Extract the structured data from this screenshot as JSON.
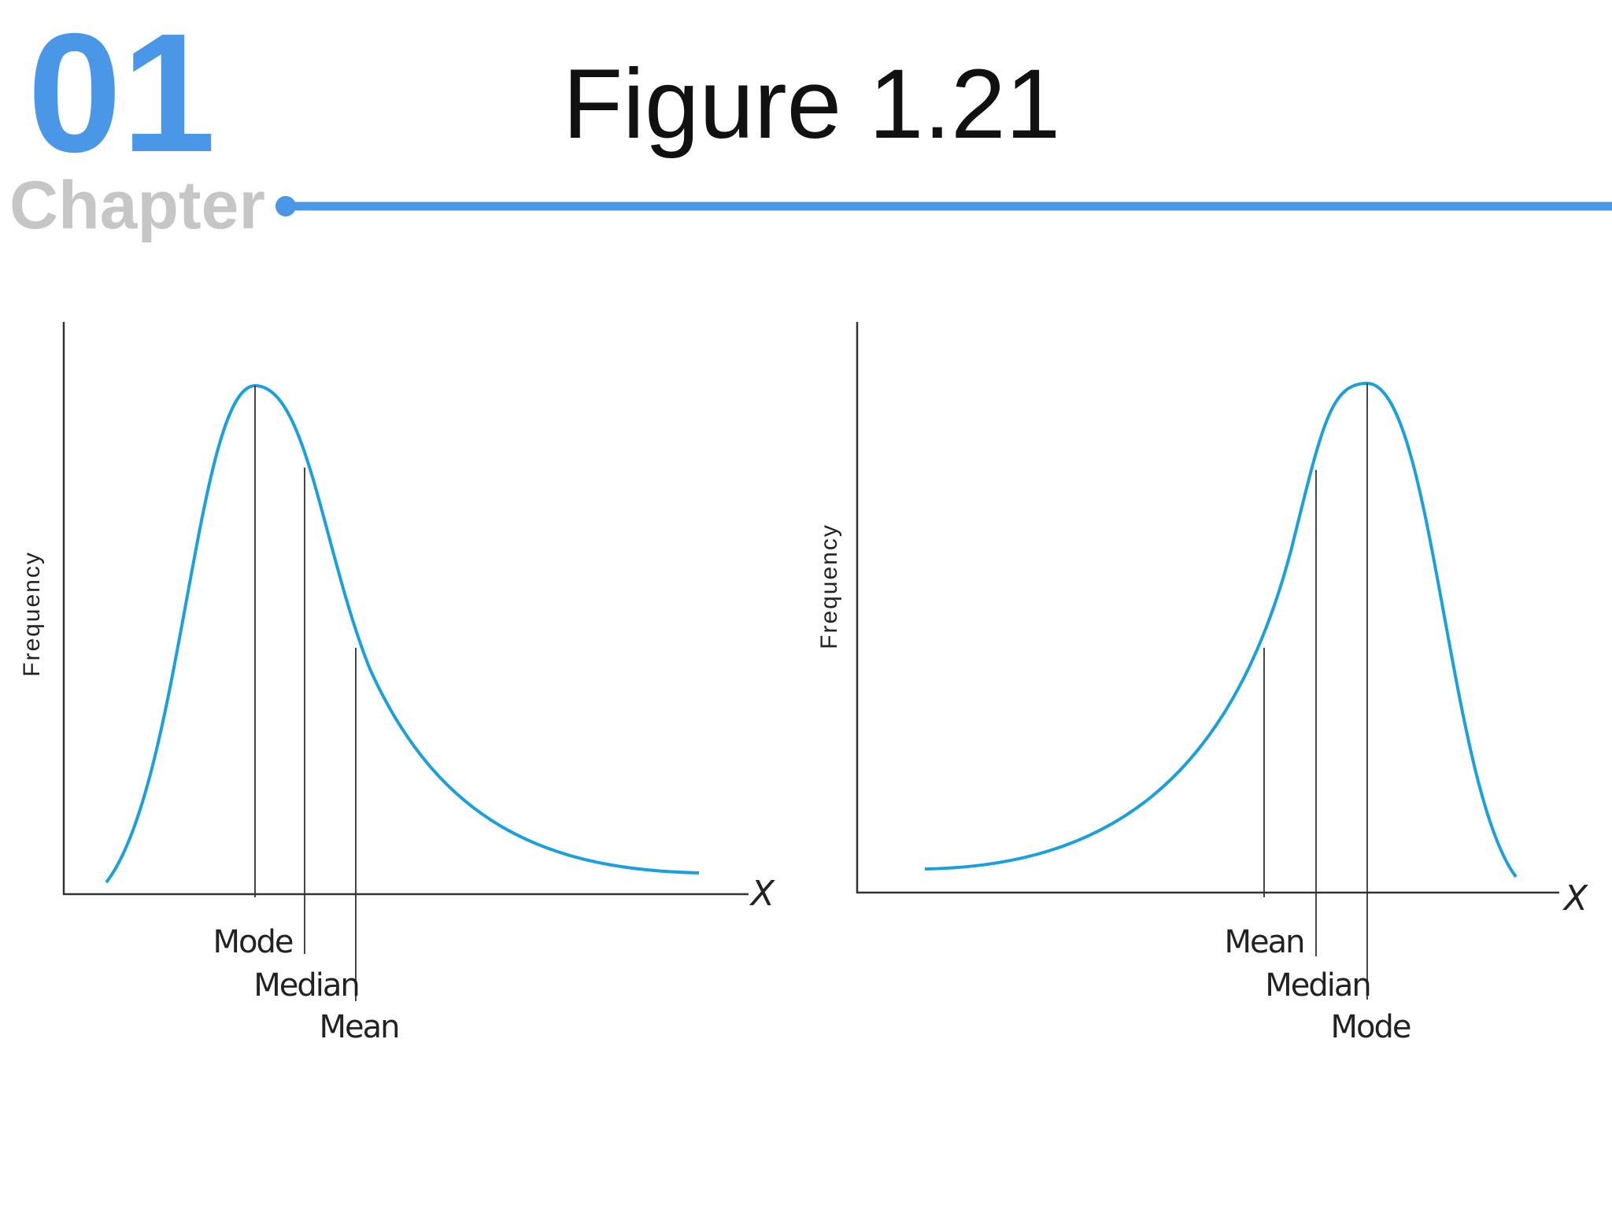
{
  "header": {
    "number": "01",
    "chapter": "Chapter",
    "title": "Figure 1.21"
  },
  "panels": [
    {
      "y_label": "Frequency",
      "x_label": "X",
      "markers": [
        "Mode",
        "Median",
        "Mean"
      ]
    },
    {
      "y_label": "Frequency",
      "x_label": "X",
      "markers": [
        "Mean",
        "Median",
        "Mode"
      ]
    }
  ]
}
